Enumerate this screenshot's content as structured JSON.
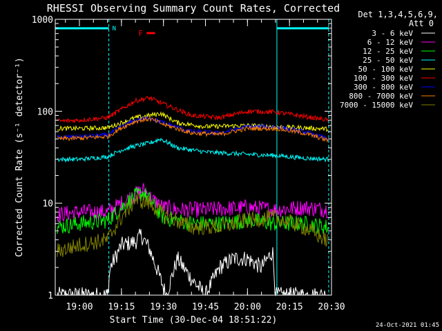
{
  "chart_data": {
    "type": "line",
    "title": "RHESSI Observing Summary Count Rates, Corrected",
    "ylabel": "Corrected Count Rate (s⁻¹ detector⁻¹)",
    "xlabel": "Start Time (30-Dec-04 18:51:22)",
    "y_scale": "log",
    "ylim": [
      1,
      1000
    ],
    "xlim": [
      "18:51:22",
      "20:30:00"
    ],
    "x_ticks": [
      "19:00",
      "19:15",
      "19:30",
      "19:45",
      "20:00",
      "20:15",
      "20:30"
    ],
    "y_ticks": [
      "1",
      "10",
      "100",
      "1000"
    ],
    "legend_header": [
      "Det 1,3,4,5,6,9,",
      "Att 0"
    ],
    "legend_position": "top-right",
    "timestamp": "24-Oct-2021 01:45",
    "annotations": [
      {
        "text": "N",
        "color": "#00ffff",
        "type": "night",
        "ranges": [
          [
            "18:51:22",
            "19:10:30"
          ],
          [
            "20:10:30",
            "20:29:00"
          ]
        ]
      },
      {
        "text": "F",
        "color": "#ff0000",
        "type": "flag",
        "range": [
          "19:24:00",
          "19:27:00"
        ]
      }
    ],
    "series": [
      {
        "name": "3 - 6 keV",
        "color": "#ffffff",
        "x": [
          "18:52",
          "19:10",
          "19:11",
          "19:15",
          "19:20",
          "19:22",
          "19:25",
          "19:28",
          "19:31",
          "19:35",
          "19:40",
          "19:45",
          "19:50",
          "19:55",
          "20:00",
          "20:05",
          "20:09",
          "20:10",
          "20:15",
          "20:29"
        ],
        "y": [
          1.0,
          1.0,
          2.0,
          3.5,
          3.8,
          4.5,
          3.2,
          1.8,
          1.0,
          2.5,
          1.5,
          1.0,
          2.0,
          2.5,
          2.5,
          2.0,
          3.0,
          1.0,
          1.0,
          1.0
        ]
      },
      {
        "name": "6 - 12 keV",
        "color": "#ff00ff",
        "x": [
          "18:52",
          "19:00",
          "19:10",
          "19:15",
          "19:20",
          "19:23",
          "19:26",
          "19:30",
          "19:35",
          "19:45",
          "20:00",
          "20:10",
          "20:20",
          "20:29"
        ],
        "y": [
          7.5,
          8.0,
          8.0,
          10.0,
          12.5,
          14.0,
          11.0,
          9.0,
          8.5,
          8.5,
          9.0,
          8.5,
          9.0,
          8.5
        ]
      },
      {
        "name": "12 - 25 keV",
        "color": "#00ff00",
        "x": [
          "18:52",
          "19:00",
          "19:10",
          "19:15",
          "19:20",
          "19:23",
          "19:27",
          "19:30",
          "19:40",
          "19:50",
          "20:00",
          "20:10",
          "20:20",
          "20:29"
        ],
        "y": [
          5.5,
          6.0,
          6.5,
          9.0,
          12.0,
          13.0,
          9.0,
          7.0,
          6.0,
          6.0,
          6.5,
          6.0,
          6.0,
          5.5
        ]
      },
      {
        "name": "25 - 50 keV",
        "color": "#00ffff",
        "x": [
          "18:52",
          "19:00",
          "19:10",
          "19:15",
          "19:20",
          "19:25",
          "19:29",
          "19:35",
          "19:45",
          "20:00",
          "20:10",
          "20:20",
          "20:29"
        ],
        "y": [
          30,
          30,
          32,
          38,
          42,
          45,
          50,
          40,
          36,
          34,
          33,
          31,
          30
        ]
      },
      {
        "name": "50 - 100 keV",
        "color": "#ffff00",
        "x": [
          "18:52",
          "19:00",
          "19:10",
          "19:15",
          "19:20",
          "19:25",
          "19:29",
          "19:35",
          "19:45",
          "20:00",
          "20:10",
          "20:20",
          "20:29"
        ],
        "y": [
          65,
          65,
          66,
          75,
          85,
          90,
          95,
          75,
          68,
          70,
          68,
          66,
          64
        ]
      },
      {
        "name": "100 - 300 keV",
        "color": "#ff0000",
        "x": [
          "18:52",
          "19:00",
          "19:10",
          "19:15",
          "19:20",
          "19:25",
          "19:30",
          "19:40",
          "19:50",
          "20:00",
          "20:10",
          "20:20",
          "20:29"
        ],
        "y": [
          78,
          80,
          85,
          105,
          130,
          140,
          120,
          90,
          85,
          100,
          98,
          88,
          80
        ]
      },
      {
        "name": "300 - 800 keV",
        "color": "#0000ff",
        "x": [
          "18:52",
          "19:00",
          "19:10",
          "19:15",
          "19:20",
          "19:25",
          "19:30",
          "19:40",
          "19:50",
          "20:00",
          "20:10",
          "20:20",
          "20:29"
        ],
        "y": [
          52,
          53,
          55,
          68,
          80,
          85,
          75,
          60,
          58,
          68,
          68,
          60,
          50
        ]
      },
      {
        "name": "800 - 7000 keV",
        "color": "#ff8000",
        "x": [
          "18:52",
          "19:00",
          "19:10",
          "19:15",
          "19:20",
          "19:25",
          "19:30",
          "19:40",
          "19:50",
          "20:00",
          "20:10",
          "20:20",
          "20:29"
        ],
        "y": [
          50,
          51,
          53,
          66,
          78,
          83,
          72,
          58,
          56,
          65,
          65,
          58,
          48
        ]
      },
      {
        "name": "7000 - 15000 keV",
        "color": "#808000",
        "x": [
          "18:52",
          "19:00",
          "19:10",
          "19:15",
          "19:20",
          "19:25",
          "19:30",
          "19:40",
          "19:50",
          "20:00",
          "20:10",
          "20:20",
          "20:29"
        ],
        "y": [
          3.0,
          3.5,
          4.0,
          7.0,
          11.0,
          10.0,
          7.5,
          5.5,
          5.5,
          6.5,
          7.0,
          5.5,
          3.8
        ]
      }
    ]
  }
}
